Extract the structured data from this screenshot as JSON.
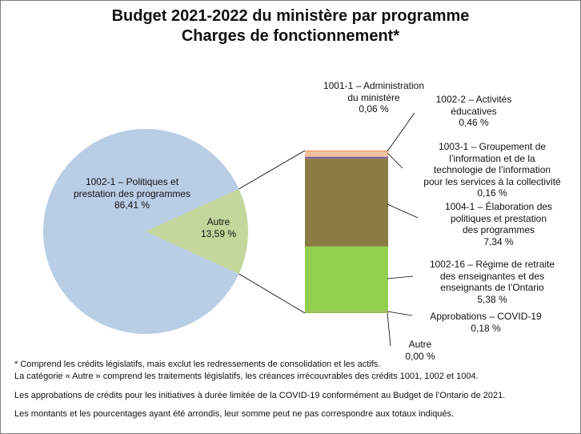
{
  "colors": {
    "pie_main": "#b9cde5",
    "pie_other": "#c3d69b",
    "connector": "#000000",
    "bar_segments": [
      "#ed7d31",
      "#f2c1a0",
      "#8064a2",
      "#8b7c44",
      "#92d050",
      "#9bbb59"
    ]
  },
  "chart_data": {
    "type": "bar-of-pie",
    "title": "Budget 2021-2022 du ministère par programme",
    "subtitle": "Charges de fonctionnement*",
    "pie": [
      {
        "label": "1002-1 – Politiques et prestation des programmes",
        "value": 86.41,
        "label_text": "86,41 %"
      },
      {
        "label": "Autre",
        "value": 13.59,
        "label_text": "13,59 %"
      }
    ],
    "bar": [
      {
        "label": "1001-1 – Administration du ministère",
        "value": 0.06,
        "label_text": "0,06 %"
      },
      {
        "label": "1002-2 – Activités éducatives",
        "value": 0.46,
        "label_text": "0,46 %"
      },
      {
        "label": "1003-1 – Groupement de l’information et de la technologie de l’information pour les services à la collectivité",
        "value": 0.16,
        "label_text": "0,16 %"
      },
      {
        "label": "1004-1 – Élaboration des politiques et prestation des programmes",
        "value": 7.34,
        "label_text": "7,34 %"
      },
      {
        "label": "1002-16 – Régime de retraite des enseignantes et des enseignants de l’Ontario",
        "value": 5.38,
        "label_text": "5,38 %"
      },
      {
        "label": "Approbations – COVID-19",
        "value": 0.18,
        "label_text": "0,18 %"
      },
      {
        "label": "Autre",
        "value": 0.0,
        "label_text": "0,00 %"
      }
    ]
  },
  "labels": {
    "pie_main": [
      "1002-1 – Politiques et",
      "prestation des programmes",
      "86,41 %"
    ],
    "pie_other": [
      "Autre",
      "13,59 %"
    ],
    "bar_1001_1": [
      "1001-1 – Administration",
      "du ministère",
      "0,06 %"
    ],
    "bar_1002_2": [
      "1002-2 – Activités",
      "éducatives",
      "0,46 %"
    ],
    "bar_1003_1": [
      "1003-1 – Groupement de",
      "l’information et de la",
      "technologie de l’information",
      "pour les services à la collectivité",
      "0,16 %"
    ],
    "bar_1004_1": [
      "1004-1 – Élaboration des",
      "politiques et prestation",
      "des programmes",
      "7,34 %"
    ],
    "bar_1002_16": [
      "1002-16 – Régime de retraite",
      "des enseignantes et des",
      "enseignants de l’Ontario",
      "5,38 %"
    ],
    "bar_covid": [
      "Approbations – COVID-19",
      "0,18 %"
    ],
    "bar_autre": [
      "Autre",
      "0,00 %"
    ]
  },
  "notes": [
    "* Comprend les crédits législatifs, mais exclut les redressements de consolidation et les actifs.",
    " La catégorie « Autre » comprend les traitements législatifs, les créances irrécouvrables des crédits 1001, 1002 et 1004.",
    "Les approbations de crédits pour les initiatives  à durée limitée de la COVID-19  conformément au Budget de l’Ontario de 2021.",
    "Les montants et les pourcentages ayant  été arrondis, leur somme peut ne pas correspondre aux totaux indiqués."
  ]
}
